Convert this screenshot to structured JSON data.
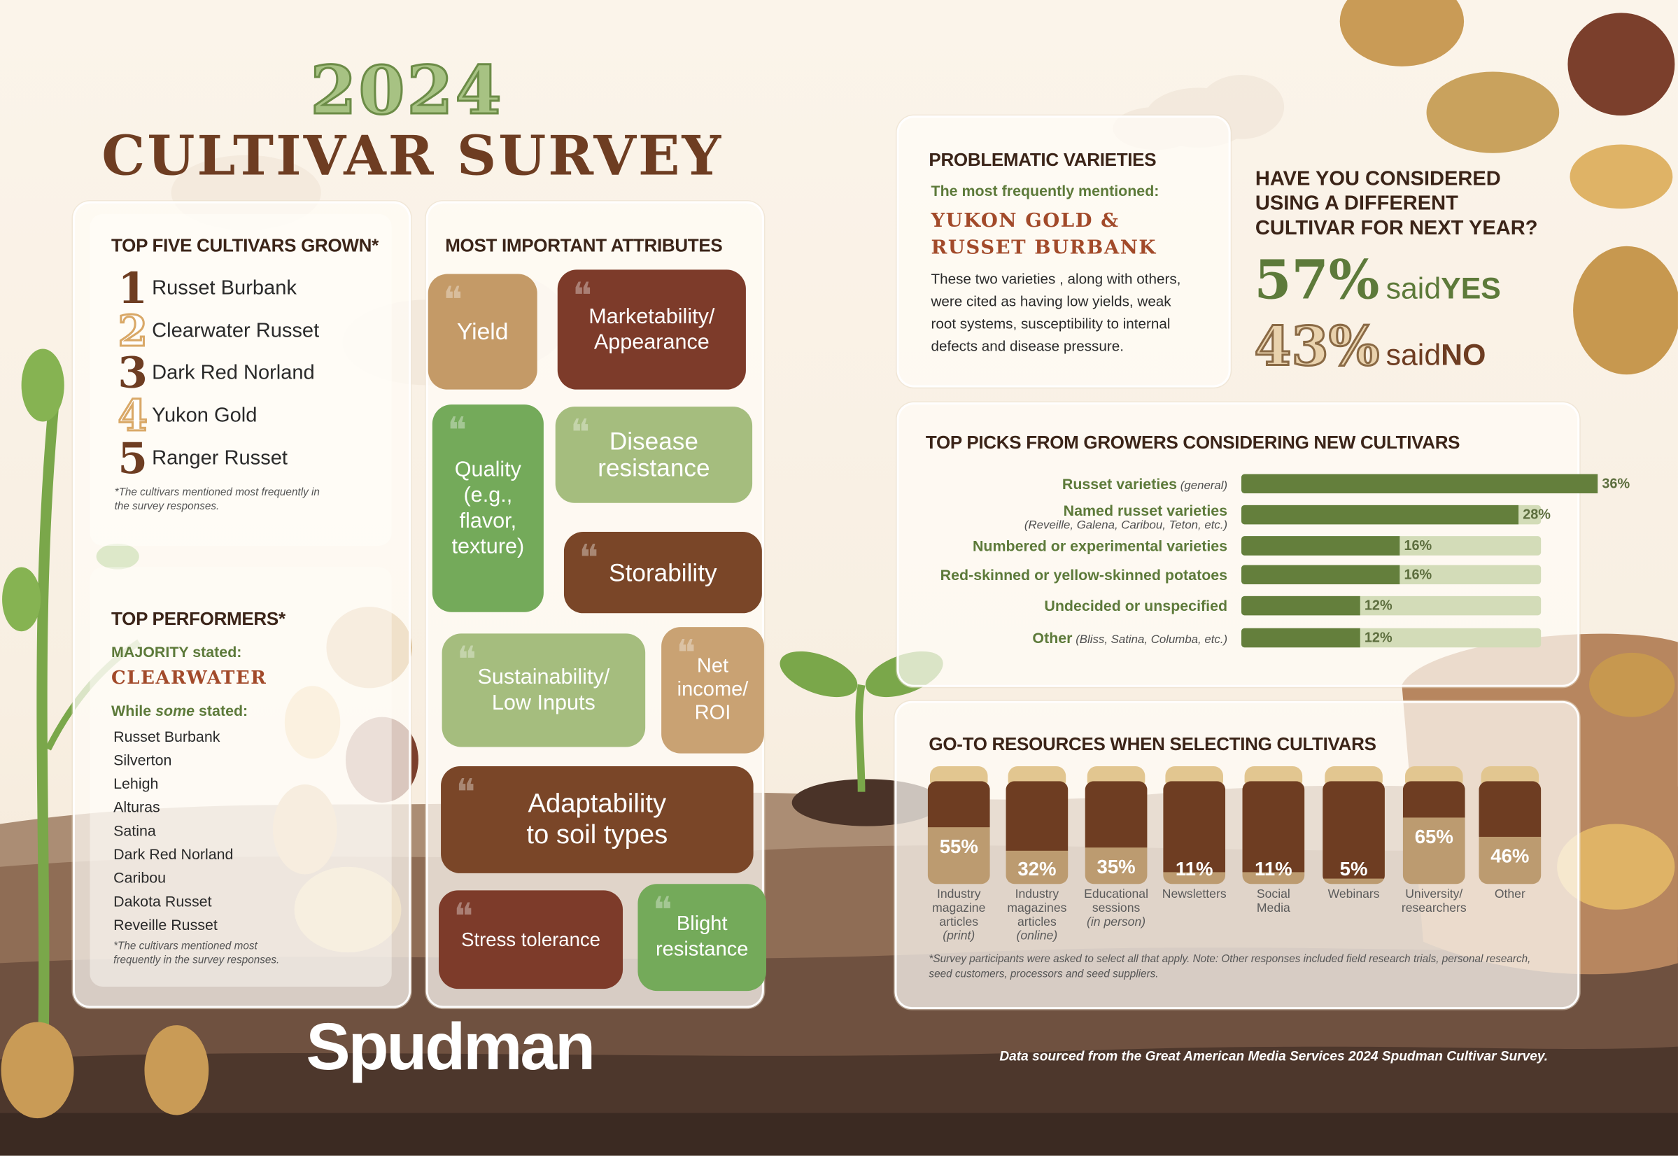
{
  "header": {
    "year": "2024",
    "title": "CULTIVAR SURVEY"
  },
  "top_five": {
    "title": "TOP FIVE CULTIVARS GROWN*",
    "items": [
      {
        "rank": "1",
        "name": "Russet Burbank"
      },
      {
        "rank": "2",
        "name": "Clearwater Russet"
      },
      {
        "rank": "3",
        "name": "Dark Red Norland"
      },
      {
        "rank": "4",
        "name": "Yukon Gold"
      },
      {
        "rank": "5",
        "name": "Ranger Russet"
      }
    ],
    "footnote_1": "*The cultivars mentioned most frequently in",
    "footnote_2": "the survey responses."
  },
  "top_performers": {
    "title": "TOP PERFORMERS*",
    "majority_label": "MAJORITY stated:",
    "majority_value": "CLEARWATER",
    "some_label_a": "While ",
    "some_label_b": "some",
    "some_label_c": " stated:",
    "items": [
      "Russet Burbank",
      "Silverton",
      "Lehigh",
      "Alturas",
      "Satina",
      "Dark Red Norland",
      "Caribou",
      "Dakota Russet",
      "Reveille Russet"
    ],
    "footnote_1": "*The cultivars mentioned most",
    "footnote_2": "frequently in the survey responses."
  },
  "attributes": {
    "title": "MOST IMPORTANT ATTRIBUTES",
    "yield": "Yield",
    "marketability_1": "Marketability/",
    "marketability_2": "Appearance",
    "quality_1": "Quality",
    "quality_2": "(e.g.,",
    "quality_3": "flavor,",
    "quality_4": "texture)",
    "disease_1": "Disease",
    "disease_2": "resistance",
    "storability": "Storability",
    "sustainability_1": "Sustainability/",
    "sustainability_2": "Low Inputs",
    "net_1": "Net",
    "net_2": "income/",
    "net_3": "ROI",
    "adapt_1": "Adaptability",
    "adapt_2": "to soil types",
    "stress": "Stress tolerance",
    "blight_1": "Blight",
    "blight_2": "resistance"
  },
  "problematic": {
    "title": "PROBLEMATIC VARIETIES",
    "subtitle": "The most frequently mentioned:",
    "names_1": "YUKON GOLD &",
    "names_2": "RUSSET BURBANK",
    "body_1": "These two varieties , along with others,",
    "body_2": "were cited as having low yields, weak",
    "body_3": "root systems, susceptibility to internal",
    "body_4": "defects and disease pressure."
  },
  "considered": {
    "q1": "HAVE YOU CONSIDERED",
    "q2": "USING A DIFFERENT",
    "q3": "CULTIVAR FOR NEXT YEAR?",
    "yes_pct": "57%",
    "yes_said": "said ",
    "yes_word": "YES",
    "no_pct": "43%",
    "no_said": "said ",
    "no_word": "NO"
  },
  "top_picks": {
    "title": "TOP PICKS FROM GROWERS CONSIDERING NEW CULTIVARS",
    "rows": [
      {
        "label": "Russet varieties",
        "sub": " (general)",
        "sub2": "",
        "value": "36%"
      },
      {
        "label": "Named russet varieties",
        "sub": "",
        "sub2": "(Reveille, Galena, Caribou, Teton, etc.)",
        "value": "28%"
      },
      {
        "label": "Numbered or experimental varieties",
        "sub": "",
        "sub2": "",
        "value": "16%"
      },
      {
        "label": "Red-skinned or yellow-skinned potatoes",
        "sub": "",
        "sub2": "",
        "value": "16%"
      },
      {
        "label": "Undecided or unspecified",
        "sub": "",
        "sub2": "",
        "value": "12%"
      },
      {
        "label": "Other",
        "sub": " (Bliss, Satina, Columba, etc.)",
        "sub2": "",
        "value": "12%"
      }
    ]
  },
  "resources": {
    "title": "GO-TO RESOURCES WHEN SELECTING CULTIVARS",
    "items": [
      {
        "value": "55%",
        "l1": "Industry",
        "l2": "magazine",
        "l3": "articles",
        "l4": "(print)"
      },
      {
        "value": "32%",
        "l1": "Industry",
        "l2": "magazines",
        "l3": "articles",
        "l4": "(online)"
      },
      {
        "value": "35%",
        "l1": "Educational",
        "l2": "sessions",
        "l3": "(in person)",
        "l4": ""
      },
      {
        "value": "11%",
        "l1": "Newsletters",
        "l2": "",
        "l3": "",
        "l4": ""
      },
      {
        "value": "11%",
        "l1": "Social",
        "l2": "Media",
        "l3": "",
        "l4": ""
      },
      {
        "value": "5%",
        "l1": "Webinars",
        "l2": "",
        "l3": "",
        "l4": ""
      },
      {
        "value": "65%",
        "l1": "University/",
        "l2": "researchers",
        "l3": "",
        "l4": ""
      },
      {
        "value": "46%",
        "l1": "Other",
        "l2": "",
        "l3": "",
        "l4": ""
      }
    ],
    "footnote_1": "*Survey participants were asked to select all that apply. Note: Other responses included field research trials, personal research,",
    "footnote_2": "seed customers, processors and seed suppliers."
  },
  "footer": {
    "brand": "Spudman",
    "source": "Data sourced from the Great American Media Services 2024 Spudman Cultivar Survey."
  },
  "colors": {
    "dark_brown": "#6e3d22",
    "green": "#647f3c",
    "light_green": "#d3dcb8",
    "tan": "#c9a06b"
  },
  "chart_data": [
    {
      "type": "bar",
      "title": "TOP PICKS FROM GROWERS CONSIDERING NEW CULTIVARS",
      "categories": [
        "Russet varieties (general)",
        "Named russet varieties",
        "Numbered or experimental varieties",
        "Red-skinned or yellow-skinned potatoes",
        "Undecided or unspecified",
        "Other"
      ],
      "values": [
        36,
        28,
        16,
        16,
        12,
        12
      ],
      "ylim": [
        0,
        100
      ]
    },
    {
      "type": "bar",
      "title": "GO-TO RESOURCES WHEN SELECTING CULTIVARS",
      "categories": [
        "Industry magazine articles (print)",
        "Industry magazines articles (online)",
        "Educational sessions (in person)",
        "Newsletters",
        "Social Media",
        "Webinars",
        "University/researchers",
        "Other"
      ],
      "values": [
        55,
        32,
        35,
        11,
        11,
        5,
        65,
        46
      ],
      "ylim": [
        0,
        100
      ]
    },
    {
      "type": "pie",
      "title": "HAVE YOU CONSIDERED USING A DIFFERENT CULTIVAR FOR NEXT YEAR?",
      "categories": [
        "YES",
        "NO"
      ],
      "values": [
        57,
        43
      ]
    }
  ]
}
